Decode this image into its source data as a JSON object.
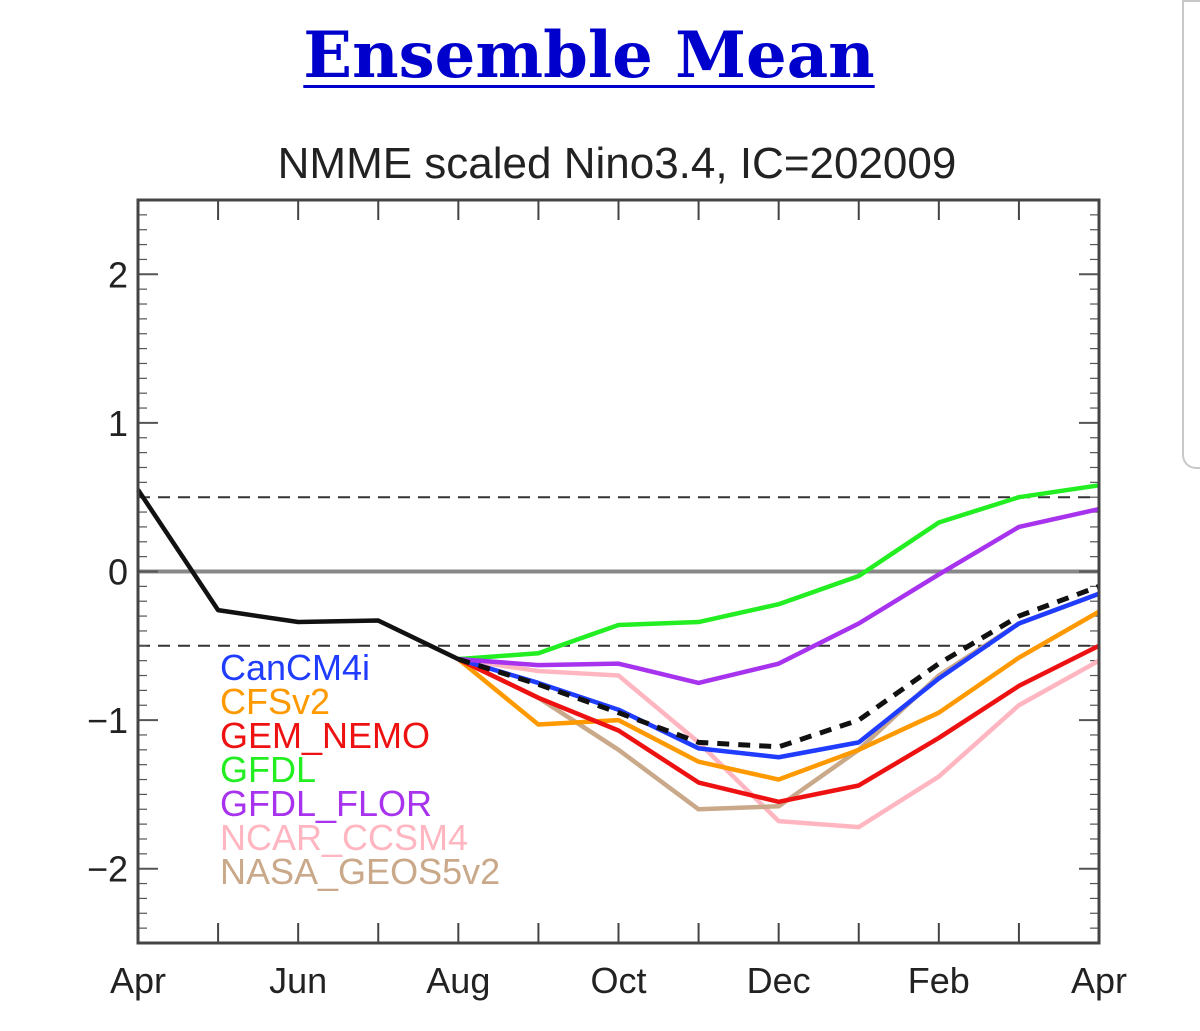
{
  "page": {
    "heading": "Ensemble Mean"
  },
  "chart_data": {
    "type": "line",
    "title": "NMME scaled Nino3.4, IC=202009",
    "xlabel": "",
    "ylabel": "",
    "x_tick_labels": [
      "Apr",
      "Jun",
      "Aug",
      "Oct",
      "Dec",
      "Feb",
      "Apr"
    ],
    "y_tick_labels": [
      "2",
      "1",
      "0",
      "−1",
      "−2"
    ],
    "y_ticks": [
      2,
      1,
      0,
      -1,
      -2
    ],
    "xlim": [
      0,
      12
    ],
    "ylim": [
      -2.5,
      2.5
    ],
    "reference_lines": [
      {
        "y": 0.5,
        "style": "dashed",
        "color": "#333333"
      },
      {
        "y": 0,
        "style": "solid",
        "color": "#888888"
      },
      {
        "y": -0.5,
        "style": "dashed",
        "color": "#333333"
      }
    ],
    "observed": {
      "color": "#111111",
      "x": [
        0,
        1,
        2,
        3,
        4
      ],
      "values": [
        0.55,
        -0.26,
        -0.34,
        -0.33,
        -0.59
      ]
    },
    "series": [
      {
        "name": "CanCM4i",
        "color": "#1f3cff",
        "x": [
          4,
          5,
          6,
          7,
          8,
          9,
          10,
          11,
          12
        ],
        "values": [
          -0.59,
          -0.75,
          -0.93,
          -1.19,
          -1.25,
          -1.15,
          -0.72,
          -0.35,
          -0.15
        ]
      },
      {
        "name": "CFSv2",
        "color": "#ff9900",
        "x": [
          4,
          5,
          6,
          7,
          8,
          9,
          10,
          11,
          12
        ],
        "values": [
          -0.59,
          -1.03,
          -1.0,
          -1.28,
          -1.4,
          -1.2,
          -0.95,
          -0.58,
          -0.27
        ]
      },
      {
        "name": "GEM_NEMO",
        "color": "#ee1111",
        "x": [
          4,
          5,
          6,
          7,
          8,
          9,
          10,
          11,
          12
        ],
        "values": [
          -0.59,
          -0.85,
          -1.07,
          -1.42,
          -1.55,
          -1.44,
          -1.12,
          -0.77,
          -0.5
        ]
      },
      {
        "name": "GFDL",
        "color": "#22ee22",
        "x": [
          4,
          5,
          6,
          7,
          8,
          9,
          10,
          11,
          12
        ],
        "values": [
          -0.59,
          -0.55,
          -0.36,
          -0.34,
          -0.22,
          -0.03,
          0.33,
          0.5,
          0.58
        ]
      },
      {
        "name": "GFDL_FLOR",
        "color": "#a733ee",
        "x": [
          4,
          5,
          6,
          7,
          8,
          9,
          10,
          11,
          12
        ],
        "values": [
          -0.59,
          -0.63,
          -0.62,
          -0.75,
          -0.62,
          -0.35,
          -0.02,
          0.3,
          0.42
        ]
      },
      {
        "name": "NCAR_CCSM4",
        "color": "#ffb6c1",
        "x": [
          4,
          5,
          6,
          7,
          8,
          9,
          10,
          11,
          12
        ],
        "values": [
          -0.59,
          -0.67,
          -0.7,
          -1.15,
          -1.68,
          -1.72,
          -1.38,
          -0.9,
          -0.6
        ]
      },
      {
        "name": "NASA_GEOS5v2",
        "color": "#c9a98a",
        "x": [
          4,
          5,
          6,
          7,
          8,
          9,
          10,
          11,
          12
        ],
        "values": [
          -0.59,
          -0.85,
          -1.2,
          -1.6,
          -1.58,
          -1.2,
          -0.7,
          -0.35,
          -0.15
        ]
      },
      {
        "name": "",
        "color": "#111111",
        "style": "dashed",
        "x": [
          4,
          5,
          6,
          7,
          8,
          9,
          10,
          11,
          12
        ],
        "values": [
          -0.59,
          -0.76,
          -0.95,
          -1.15,
          -1.18,
          -1.0,
          -0.62,
          -0.3,
          -0.1
        ]
      }
    ]
  }
}
